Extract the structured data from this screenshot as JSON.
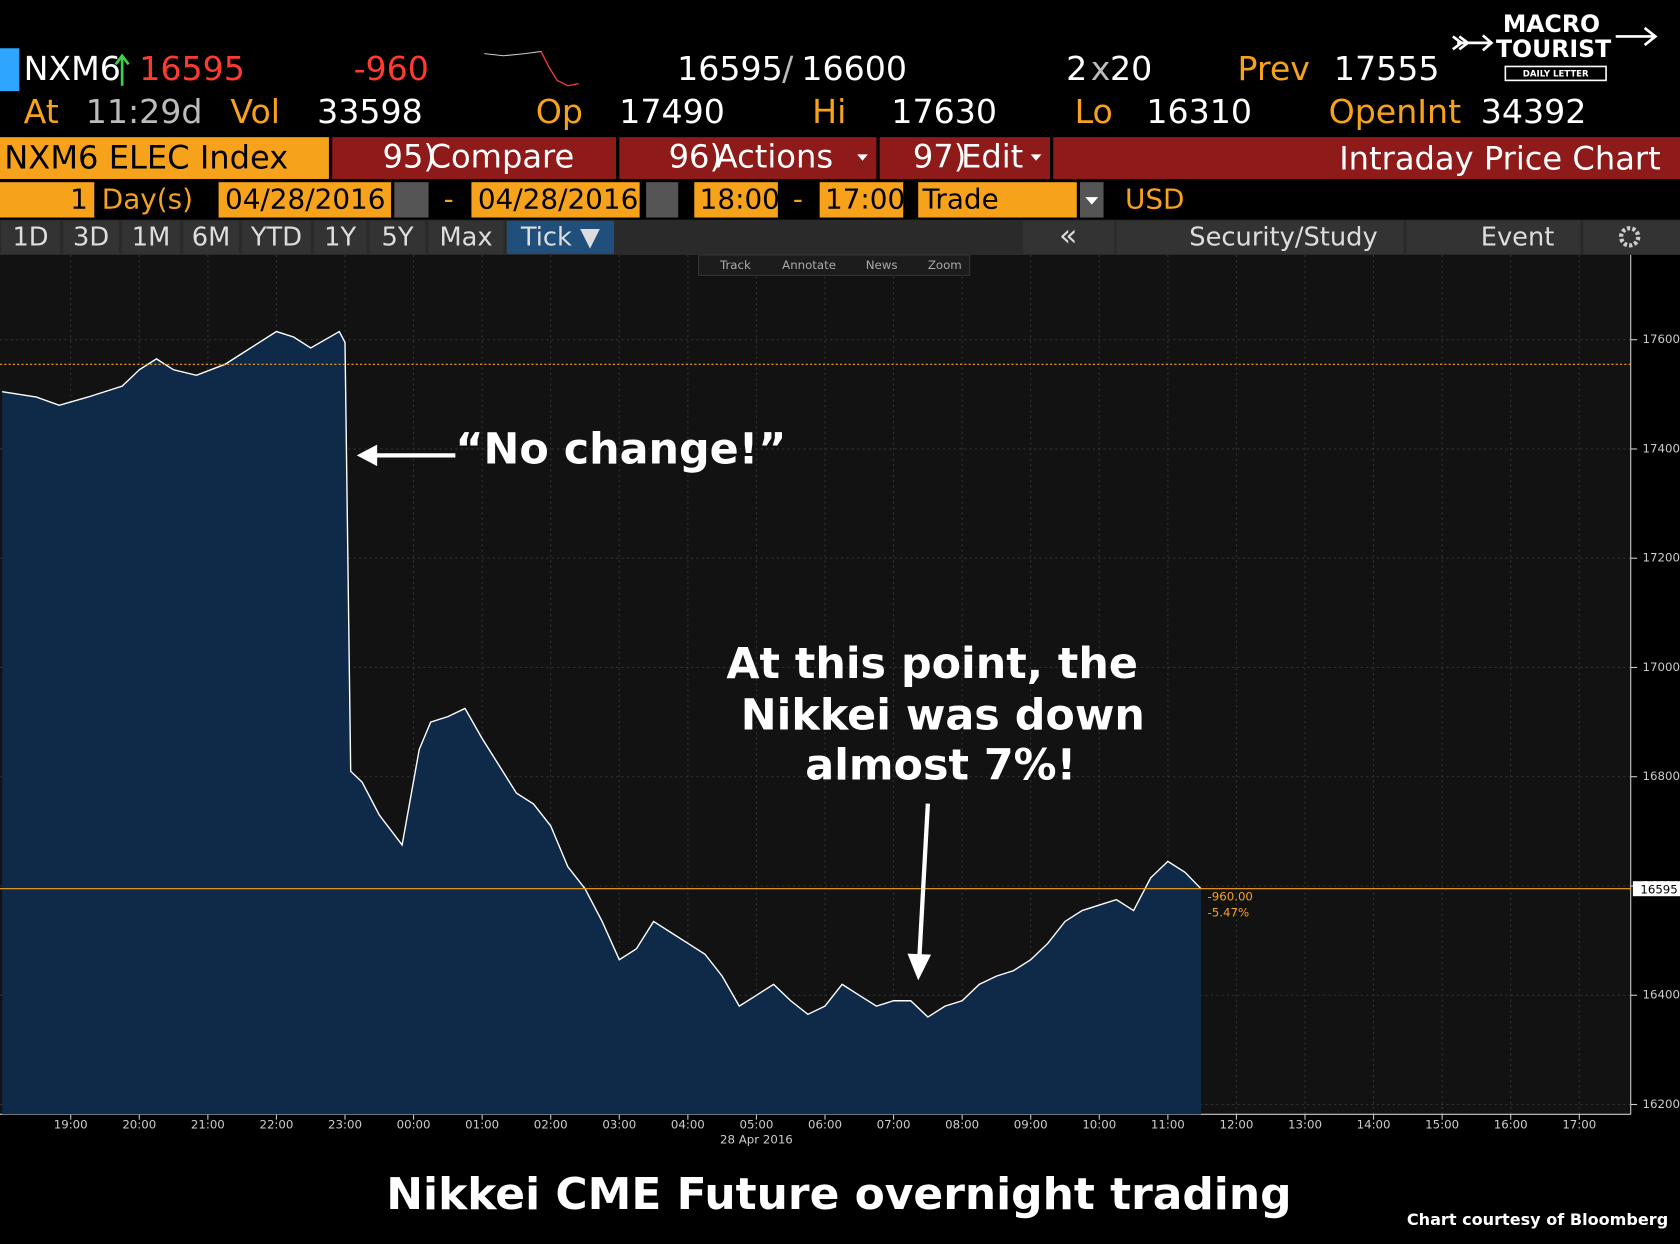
{
  "header": {
    "ticker": "NXM6",
    "last": "16595",
    "change": "-960",
    "bid": "16595",
    "bid_ask_sep": "/",
    "ask": "16600",
    "bid_size": "2",
    "size_sep": "x",
    "ask_size": "20",
    "prev_label": "Prev",
    "prev": 17555,
    "at_label": "At",
    "time": "11:29d",
    "vol_label": "Vol",
    "vol": "33598",
    "open_label": "Op",
    "open": "17490",
    "high_label": "Hi",
    "high": "17630",
    "low_label": "Lo",
    "low": "16310",
    "oi_label": "OpenInt",
    "oi": "34392"
  },
  "logo": {
    "line1": "MACRO",
    "line2": "TOURIST",
    "tagline": "DAILY LETTER"
  },
  "menu": {
    "security": "NXM6 ELEC Index",
    "buttons": [
      {
        "num": "95)",
        "label": "Compare"
      },
      {
        "num": "96)",
        "label": "Actions"
      },
      {
        "num": "97)",
        "label": "Edit"
      }
    ],
    "title": "Intraday Price Chart"
  },
  "settings": {
    "period": "1",
    "period_unit": "Day(s)",
    "start_date": "04/28/2016",
    "separator": "-",
    "end_date": "04/28/2016",
    "start_time": "18:00",
    "end_time": "17:00",
    "field": "Trade",
    "currency": "USD"
  },
  "tabs": [
    "1D",
    "3D",
    "1M",
    "6M",
    "YTD",
    "1Y",
    "5Y",
    "Max",
    "Tick ▼"
  ],
  "tools": {
    "collapse": "«",
    "study": "Security/Study",
    "event": "Event"
  },
  "toolbar": [
    "Track",
    "Annotate",
    "News",
    "Zoom"
  ],
  "chart_data": {
    "type": "area",
    "x": [
      "18:00",
      "18:30",
      "18:50",
      "19:15",
      "19:45",
      "20:00",
      "20:15",
      "20:30",
      "20:50",
      "21:15",
      "21:30",
      "22:00",
      "22:15",
      "22:30",
      "22:55",
      "23:00",
      "23:05",
      "23:15",
      "23:30",
      "23:50",
      "00:05",
      "00:15",
      "00:30",
      "00:45",
      "01:00",
      "01:15",
      "01:30",
      "01:45",
      "02:00",
      "02:15",
      "02:30",
      "02:45",
      "03:00",
      "03:15",
      "03:30",
      "03:45",
      "04:00",
      "04:15",
      "04:30",
      "04:45",
      "05:00",
      "05:15",
      "05:30",
      "05:45",
      "06:00",
      "06:15",
      "06:30",
      "06:45",
      "07:00",
      "07:15",
      "07:30",
      "07:45",
      "08:00",
      "08:15",
      "08:30",
      "08:45",
      "09:00",
      "09:15",
      "09:30",
      "09:45",
      "10:00",
      "10:15",
      "10:30",
      "10:45",
      "11:00",
      "11:15",
      "11:29"
    ],
    "series": [
      {
        "name": "NXM6",
        "color": "#ffffff",
        "fill": "#0e2a48",
        "values": [
          17505,
          17495,
          17480,
          17495,
          17515,
          17545,
          17565,
          17545,
          17535,
          17555,
          17575,
          17615,
          17605,
          17585,
          17615,
          17595,
          16810,
          16790,
          16730,
          16675,
          16850,
          16900,
          16910,
          16925,
          16870,
          16820,
          16770,
          16750,
          16710,
          16635,
          16595,
          16535,
          16465,
          16485,
          16535,
          16515,
          16495,
          16475,
          16435,
          16380,
          16400,
          16420,
          16390,
          16365,
          16380,
          16420,
          16400,
          16380,
          16390,
          16390,
          16360,
          16380,
          16390,
          16420,
          16435,
          16445,
          16465,
          16495,
          16535,
          16555,
          16565,
          16575,
          16555,
          16615,
          16645,
          16625,
          16595
        ]
      }
    ],
    "xlim": [
      "18:00",
      "17:45"
    ],
    "xticks": [
      "19:00",
      "20:00",
      "21:00",
      "22:00",
      "23:00",
      "00:00",
      "01:00",
      "02:00",
      "03:00",
      "04:00",
      "05:00",
      "06:00",
      "07:00",
      "08:00",
      "09:00",
      "10:00",
      "11:00",
      "12:00",
      "13:00",
      "14:00",
      "15:00",
      "16:00",
      "17:00"
    ],
    "date_label": "28 Apr 2016",
    "ylim": [
      16182,
      17755
    ],
    "yticks": [
      16200,
      16400,
      16600,
      16800,
      17000,
      17200,
      17400,
      17600
    ],
    "grid": true,
    "annotations": {
      "no_change": "“No change!”",
      "callout": [
        "At this point, the",
        "Nikkei was down",
        "almost 7%!"
      ],
      "change": "-960.00",
      "change_pct": "-5.47%"
    }
  },
  "caption": "Nikkei CME Future overnight trading",
  "credit": "Chart courtesy of Bloomberg"
}
